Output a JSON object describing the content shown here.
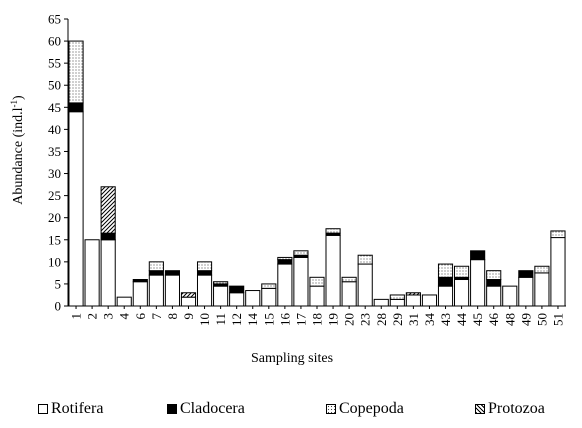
{
  "chart_data": {
    "type": "bar",
    "stacked": true,
    "xlabel": "Sampling sites",
    "ylabel": "Abundance (ind.l⁻¹)",
    "ylim": [
      0,
      65
    ],
    "yticks": [
      0,
      5,
      10,
      15,
      20,
      25,
      30,
      35,
      40,
      45,
      50,
      55,
      60,
      65
    ],
    "grid": false,
    "legend_position": "bottom",
    "categories": [
      "1",
      "2",
      "3",
      "4",
      "6",
      "7",
      "8",
      "9",
      "10",
      "11",
      "12",
      "14",
      "15",
      "16",
      "17",
      "18",
      "19",
      "20",
      "23",
      "28",
      "29",
      "31",
      "34",
      "43",
      "44",
      "45",
      "46",
      "48",
      "49",
      "50",
      "51"
    ],
    "series": [
      {
        "name": "Rotifera",
        "pattern": "white",
        "values": [
          44,
          15,
          15,
          2,
          5.5,
          7,
          7,
          2,
          7,
          4.5,
          3,
          3.5,
          4,
          9.5,
          11,
          4.5,
          16,
          5.5,
          9.5,
          1.5,
          1.5,
          2.5,
          2.5,
          4.5,
          6,
          10.5,
          4.5,
          4.5,
          6.5,
          7.5,
          15.5
        ]
      },
      {
        "name": "Cladocera",
        "pattern": "black",
        "values": [
          2,
          0,
          1.5,
          0,
          0.5,
          1,
          1,
          0,
          1,
          0.5,
          1.5,
          0,
          0,
          1,
          0.5,
          0,
          0.5,
          0,
          0,
          0,
          0,
          0,
          0,
          2,
          0.5,
          2,
          1.5,
          0,
          1.5,
          0,
          0
        ]
      },
      {
        "name": "Copepoda",
        "pattern": "dotted",
        "values": [
          14,
          0,
          0,
          0,
          0,
          2,
          0,
          0,
          2,
          0.5,
          0,
          0,
          1,
          0.5,
          1,
          2,
          1,
          1,
          2,
          0,
          1,
          0,
          0,
          3,
          2.5,
          0,
          2,
          0,
          0,
          1.5,
          1.5
        ]
      },
      {
        "name": "Protozoa",
        "pattern": "hatched",
        "values": [
          0,
          0,
          10.5,
          0,
          0,
          0,
          0,
          1,
          0,
          0,
          0,
          0,
          0,
          0,
          0,
          0,
          0,
          0,
          0,
          0,
          0,
          0.5,
          0,
          0,
          0,
          0,
          0,
          0,
          0,
          0,
          0
        ]
      }
    ]
  }
}
